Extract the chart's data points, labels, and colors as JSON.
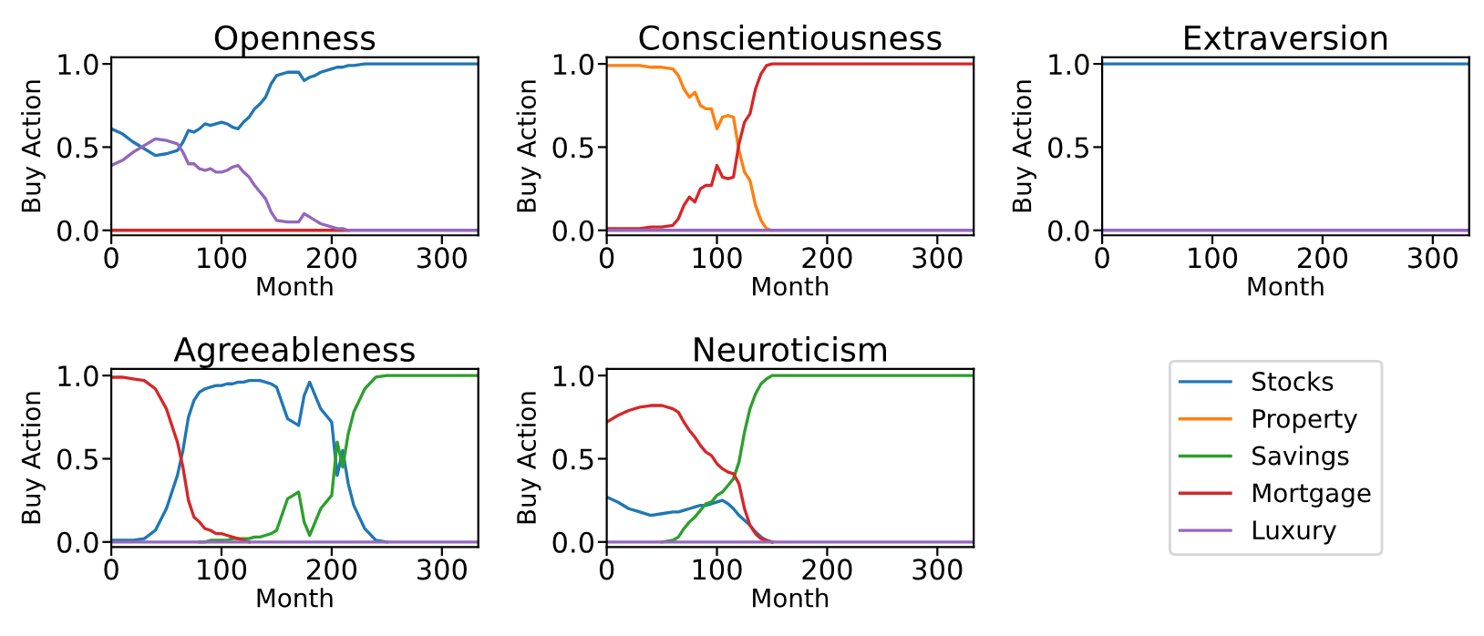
{
  "chart_data": [
    {
      "type": "line",
      "title": "Openness",
      "xlabel": "Month",
      "ylabel": "Buy Action",
      "xlim": [
        0,
        333
      ],
      "ylim": [
        -0.03,
        1.04
      ],
      "xticks": [
        0,
        100,
        200,
        300
      ],
      "yticks": [
        {
          "value": 0,
          "label": "0.0"
        },
        {
          "value": 0.5,
          "label": "0.5"
        },
        {
          "value": 1,
          "label": "1.0"
        }
      ],
      "x": [
        0,
        10,
        20,
        30,
        40,
        50,
        60,
        65,
        70,
        75,
        80,
        85,
        90,
        95,
        100,
        105,
        110,
        115,
        120,
        125,
        130,
        135,
        140,
        145,
        150,
        160,
        170,
        175,
        180,
        185,
        190,
        200,
        205,
        210,
        215,
        220,
        230,
        240,
        250,
        275,
        300,
        333
      ],
      "series": [
        {
          "color": "#1f77b4",
          "values": [
            0.61,
            0.58,
            0.53,
            0.49,
            0.45,
            0.46,
            0.48,
            0.53,
            0.6,
            0.59,
            0.61,
            0.64,
            0.63,
            0.64,
            0.65,
            0.64,
            0.62,
            0.61,
            0.65,
            0.68,
            0.73,
            0.76,
            0.8,
            0.88,
            0.93,
            0.95,
            0.95,
            0.9,
            0.92,
            0.93,
            0.95,
            0.97,
            0.98,
            0.98,
            0.99,
            0.99,
            1,
            1,
            1,
            1,
            1,
            1
          ]
        },
        {
          "color": "#d62728",
          "values": [
            0,
            0,
            0,
            0,
            0,
            0,
            0,
            0,
            0,
            0,
            0,
            0,
            0,
            0,
            0,
            0,
            0,
            0,
            0,
            0,
            0,
            0,
            0,
            0,
            0,
            0,
            0,
            0,
            0,
            0,
            0,
            0,
            0,
            0,
            0,
            null,
            null,
            null,
            null,
            null,
            null,
            null
          ]
        },
        {
          "color": "#9467bd",
          "values": [
            0.39,
            0.42,
            0.47,
            0.51,
            0.55,
            0.54,
            0.52,
            0.47,
            0.4,
            0.4,
            0.37,
            0.36,
            0.37,
            0.35,
            0.35,
            0.36,
            0.38,
            0.39,
            0.35,
            0.32,
            0.27,
            0.23,
            0.19,
            0.11,
            0.06,
            0.05,
            0.05,
            0.1,
            0.08,
            0.06,
            0.04,
            0.02,
            0.01,
            0.01,
            0,
            0,
            0,
            0,
            0,
            0,
            0,
            0
          ]
        }
      ]
    },
    {
      "type": "line",
      "title": "Conscientiousness",
      "xlabel": "Month",
      "ylabel": "Buy Action",
      "xlim": [
        0,
        333
      ],
      "ylim": [
        -0.03,
        1.04
      ],
      "xticks": [
        0,
        100,
        200,
        300
      ],
      "yticks": [
        {
          "value": 0,
          "label": "0.0"
        },
        {
          "value": 0.5,
          "label": "0.5"
        },
        {
          "value": 1,
          "label": "1.0"
        }
      ],
      "x": [
        0,
        10,
        20,
        30,
        40,
        50,
        60,
        65,
        70,
        75,
        80,
        85,
        90,
        95,
        100,
        105,
        110,
        115,
        120,
        125,
        130,
        135,
        140,
        145,
        150,
        160,
        170,
        175,
        180,
        185,
        190,
        200,
        205,
        210,
        215,
        220,
        230,
        240,
        250,
        275,
        300,
        333
      ],
      "series": [
        {
          "color": "#ff7f0e",
          "values": [
            0.99,
            0.99,
            0.99,
            0.99,
            0.98,
            0.98,
            0.97,
            0.93,
            0.85,
            0.8,
            0.83,
            0.75,
            0.73,
            0.73,
            0.61,
            0.68,
            0.69,
            0.68,
            0.48,
            0.35,
            0.3,
            0.15,
            0.06,
            0.01,
            0,
            null,
            null,
            null,
            null,
            null,
            null,
            null,
            null,
            null,
            null,
            null,
            null,
            null,
            null,
            null,
            null,
            null
          ]
        },
        {
          "color": "#d62728",
          "values": [
            0.01,
            0.01,
            0.01,
            0.01,
            0.02,
            0.02,
            0.03,
            0.07,
            0.15,
            0.2,
            0.17,
            0.25,
            0.27,
            0.27,
            0.39,
            0.32,
            0.31,
            0.32,
            0.52,
            0.65,
            0.7,
            0.85,
            0.94,
            0.99,
            1,
            1,
            1,
            1,
            1,
            1,
            1,
            1,
            1,
            1,
            1,
            1,
            1,
            1,
            1,
            1,
            1,
            1
          ]
        },
        {
          "color": "#9467bd",
          "values": [
            0,
            0,
            0,
            0,
            0,
            0,
            0,
            0,
            0,
            0,
            0,
            0,
            0,
            0,
            0,
            0,
            0,
            0,
            0,
            0,
            0,
            0,
            0,
            0,
            0,
            0,
            0,
            0,
            0,
            0,
            0,
            0,
            0,
            0,
            0,
            0,
            0,
            0,
            0,
            0,
            0,
            0
          ]
        }
      ]
    },
    {
      "type": "line",
      "title": "Extraversion",
      "xlabel": "Month",
      "ylabel": "Buy Action",
      "xlim": [
        0,
        333
      ],
      "ylim": [
        -0.03,
        1.04
      ],
      "xticks": [
        0,
        100,
        200,
        300
      ],
      "yticks": [
        {
          "value": 0,
          "label": "0.0"
        },
        {
          "value": 0.5,
          "label": "0.5"
        },
        {
          "value": 1,
          "label": "1.0"
        }
      ],
      "x": [
        0,
        100,
        200,
        333
      ],
      "series": [
        {
          "color": "#1f77b4",
          "values": [
            1,
            1,
            1,
            1
          ]
        },
        {
          "color": "#9467bd",
          "values": [
            0,
            0,
            0,
            0
          ]
        }
      ]
    },
    {
      "type": "line",
      "title": "Agreeableness",
      "xlabel": "Month",
      "ylabel": "Buy Action",
      "xlim": [
        0,
        333
      ],
      "ylim": [
        -0.03,
        1.04
      ],
      "xticks": [
        0,
        100,
        200,
        300
      ],
      "yticks": [
        {
          "value": 0,
          "label": "0.0"
        },
        {
          "value": 0.5,
          "label": "0.5"
        },
        {
          "value": 1,
          "label": "1.0"
        }
      ],
      "x": [
        0,
        10,
        20,
        30,
        40,
        50,
        60,
        65,
        70,
        75,
        80,
        85,
        90,
        95,
        100,
        105,
        110,
        115,
        120,
        125,
        130,
        135,
        140,
        145,
        150,
        160,
        170,
        175,
        180,
        185,
        190,
        200,
        205,
        210,
        215,
        220,
        230,
        240,
        250,
        275,
        300,
        333
      ],
      "series": [
        {
          "color": "#1f77b4",
          "values": [
            0.01,
            0.01,
            0.01,
            0.02,
            0.07,
            0.2,
            0.4,
            0.55,
            0.75,
            0.85,
            0.9,
            0.92,
            0.93,
            0.94,
            0.94,
            0.95,
            0.95,
            0.96,
            0.96,
            0.97,
            0.97,
            0.97,
            0.96,
            0.95,
            0.93,
            0.74,
            0.7,
            0.88,
            0.96,
            0.88,
            0.8,
            0.72,
            0.4,
            0.55,
            0.35,
            0.22,
            0.08,
            0.01,
            0,
            null,
            null,
            null
          ]
        },
        {
          "color": "#2ca02c",
          "values": [
            null,
            null,
            null,
            null,
            null,
            null,
            null,
            null,
            null,
            null,
            0,
            0,
            0.01,
            0.01,
            0.01,
            0.01,
            0.02,
            0.02,
            0.02,
            0.02,
            0.03,
            0.03,
            0.04,
            0.05,
            0.07,
            0.26,
            0.3,
            0.12,
            0.04,
            0.12,
            0.2,
            0.28,
            0.6,
            0.45,
            0.65,
            0.78,
            0.92,
            0.99,
            1,
            1,
            1,
            1
          ]
        },
        {
          "color": "#d62728",
          "values": [
            0.99,
            0.99,
            0.98,
            0.97,
            0.92,
            0.8,
            0.6,
            0.45,
            0.25,
            0.15,
            0.12,
            0.08,
            0.07,
            0.05,
            0.05,
            0.04,
            0.03,
            0.02,
            0.01,
            0,
            null,
            null,
            null,
            null,
            null,
            null,
            null,
            null,
            null,
            null,
            null,
            null,
            null,
            null,
            null,
            null,
            null,
            null,
            null,
            null,
            null,
            null
          ]
        },
        {
          "color": "#9467bd",
          "values": [
            0,
            0,
            0,
            0,
            0,
            0,
            0,
            0,
            0,
            0,
            0,
            0,
            0,
            0,
            0,
            0,
            0,
            0,
            0,
            0,
            0,
            0,
            0,
            0,
            0,
            0,
            0,
            0,
            0,
            0,
            0,
            0,
            0,
            0,
            0,
            0,
            0,
            0,
            0,
            0,
            0,
            0
          ]
        }
      ]
    },
    {
      "type": "line",
      "title": "Neuroticism",
      "xlabel": "Month",
      "ylabel": "Buy Action",
      "xlim": [
        0,
        333
      ],
      "ylim": [
        -0.03,
        1.04
      ],
      "xticks": [
        0,
        100,
        200,
        300
      ],
      "yticks": [
        {
          "value": 0,
          "label": "0.0"
        },
        {
          "value": 0.5,
          "label": "0.5"
        },
        {
          "value": 1,
          "label": "1.0"
        }
      ],
      "legend": "right",
      "x": [
        0,
        10,
        20,
        30,
        40,
        50,
        60,
        65,
        70,
        75,
        80,
        85,
        90,
        95,
        100,
        105,
        110,
        115,
        120,
        125,
        130,
        135,
        140,
        145,
        150,
        160,
        170,
        175,
        180,
        185,
        190,
        200,
        205,
        210,
        215,
        220,
        230,
        240,
        250,
        275,
        300,
        333
      ],
      "series": [
        {
          "name": "Stocks",
          "color": "#1f77b4",
          "values": [
            0.27,
            0.24,
            0.2,
            0.18,
            0.16,
            0.17,
            0.18,
            0.18,
            0.19,
            0.2,
            0.21,
            0.22,
            0.22,
            0.23,
            0.24,
            0.25,
            0.23,
            0.2,
            0.16,
            0.13,
            0.1,
            0.06,
            0.03,
            0.01,
            0,
            null,
            null,
            null,
            null,
            null,
            null,
            null,
            null,
            null,
            null,
            null,
            null,
            null,
            null,
            null,
            null,
            null
          ]
        },
        {
          "name": "Property",
          "color": "#ff7f0e",
          "values": [
            null,
            null,
            null,
            null,
            null,
            null,
            null,
            null,
            null,
            null,
            null,
            null,
            null,
            null,
            null,
            null,
            null,
            null,
            null,
            null,
            null,
            null,
            null,
            null,
            null,
            null,
            null,
            null,
            null,
            null,
            null,
            null,
            null,
            null,
            null,
            null,
            null,
            null,
            null,
            null,
            null,
            null
          ]
        },
        {
          "name": "Savings",
          "color": "#2ca02c",
          "values": [
            null,
            null,
            null,
            null,
            null,
            0,
            0.01,
            0.03,
            0.08,
            0.12,
            0.15,
            0.19,
            0.23,
            0.24,
            0.28,
            0.3,
            0.34,
            0.38,
            0.48,
            0.66,
            0.8,
            0.89,
            0.95,
            0.98,
            1,
            1,
            1,
            1,
            1,
            1,
            1,
            1,
            1,
            1,
            1,
            1,
            1,
            1,
            1,
            1,
            1,
            1
          ]
        },
        {
          "name": "Mortgage",
          "color": "#d62728",
          "values": [
            0.72,
            0.76,
            0.79,
            0.81,
            0.82,
            0.82,
            0.8,
            0.78,
            0.72,
            0.67,
            0.63,
            0.58,
            0.54,
            0.52,
            0.47,
            0.44,
            0.42,
            0.41,
            0.35,
            0.2,
            0.1,
            0.05,
            0.02,
            0.01,
            0,
            null,
            null,
            null,
            null,
            null,
            null,
            null,
            null,
            null,
            null,
            null,
            null,
            null,
            null,
            null,
            null,
            null
          ]
        },
        {
          "name": "Luxury",
          "color": "#9467bd",
          "values": [
            0,
            0,
            0,
            0,
            0,
            0,
            0,
            0,
            0,
            0,
            0,
            0,
            0,
            0,
            0,
            0,
            0,
            0,
            0,
            0,
            0,
            0,
            0,
            0,
            0,
            0,
            0,
            0,
            0,
            0,
            0,
            0,
            0,
            0,
            0,
            0,
            0,
            0,
            0,
            0,
            0,
            0
          ]
        }
      ]
    }
  ]
}
